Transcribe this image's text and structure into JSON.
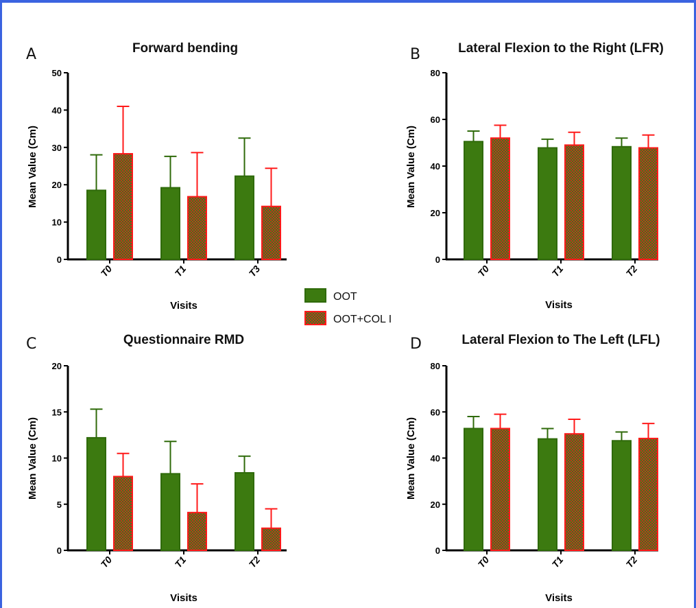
{
  "colors": {
    "oot_fill": "#3c7a10",
    "oot_edge": "#2f6a0a",
    "col_fill_a": "#d51f1f",
    "col_fill_b": "#2e8a18",
    "col_edge": "#ff1a1a",
    "frame": "#3b63e0"
  },
  "legend": [
    {
      "name": "OOT"
    },
    {
      "name": "OOT+COL I"
    }
  ],
  "chart_data": [
    {
      "type": "bar",
      "panel": "A",
      "title": "Forward bending",
      "xlabel": "Visits",
      "ylabel": "Mean Value (Cm)",
      "ylim": [
        0,
        50
      ],
      "yticks": [
        0,
        10,
        20,
        30,
        40,
        50
      ],
      "categories": [
        "T0",
        "T1",
        "T3"
      ],
      "series": [
        {
          "name": "OOT",
          "values": [
            18.5,
            19.2,
            22.3
          ],
          "err_upper": [
            28.0,
            27.6,
            32.5
          ]
        },
        {
          "name": "OOT+COL I",
          "values": [
            28.3,
            16.8,
            14.2
          ],
          "err_upper": [
            41.0,
            28.6,
            24.4
          ]
        }
      ]
    },
    {
      "type": "bar",
      "panel": "B",
      "title": "Lateral Flexion to the Right (LFR)",
      "xlabel": "Visits",
      "ylabel": "Mean Value (Cm)",
      "ylim": [
        0,
        80
      ],
      "yticks": [
        0,
        20,
        40,
        60,
        80
      ],
      "categories": [
        "T0",
        "T1",
        "T2"
      ],
      "series": [
        {
          "name": "OOT",
          "values": [
            50.5,
            47.8,
            48.3
          ],
          "err_upper": [
            55.0,
            51.5,
            52.0
          ]
        },
        {
          "name": "OOT+COL I",
          "values": [
            52.0,
            49.0,
            47.8
          ],
          "err_upper": [
            57.5,
            54.5,
            53.3
          ]
        }
      ]
    },
    {
      "type": "bar",
      "panel": "C",
      "title": "Questionnaire RMD",
      "xlabel": "Visits",
      "ylabel": "Mean Value (Cm)",
      "ylim": [
        0,
        20
      ],
      "yticks": [
        0,
        5,
        10,
        15,
        20
      ],
      "categories": [
        "T0",
        "T1",
        "T2"
      ],
      "series": [
        {
          "name": "OOT",
          "values": [
            12.2,
            8.3,
            8.4
          ],
          "err_upper": [
            15.3,
            11.8,
            10.2
          ]
        },
        {
          "name": "OOT+COL I",
          "values": [
            8.0,
            4.1,
            2.4
          ],
          "err_upper": [
            10.5,
            7.2,
            4.5
          ]
        }
      ]
    },
    {
      "type": "bar",
      "panel": "D",
      "title": "Lateral Flexion to The Left (LFL)",
      "xlabel": "Visits",
      "ylabel": "Mean Value (Cm)",
      "ylim": [
        0,
        80
      ],
      "yticks": [
        0,
        20,
        40,
        60,
        80
      ],
      "categories": [
        "T0",
        "T1",
        "T2"
      ],
      "series": [
        {
          "name": "OOT",
          "values": [
            52.8,
            48.3,
            47.5
          ],
          "err_upper": [
            58.0,
            52.8,
            51.3
          ]
        },
        {
          "name": "OOT+COL I",
          "values": [
            52.8,
            50.5,
            48.5
          ],
          "err_upper": [
            59.0,
            56.8,
            55.0
          ]
        }
      ]
    }
  ]
}
